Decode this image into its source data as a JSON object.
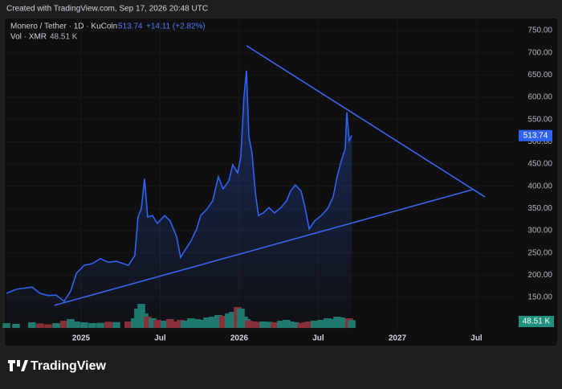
{
  "header": {
    "caption": "Created with TradingView.com, Sep 17, 2026 20:48 UTC",
    "brand": "TradingView"
  },
  "chart_data": {
    "type": "area",
    "symbol": "Monero / Tether · 1D · KuCoin",
    "change_label": "+14.11 (+2.82%)",
    "x": [
      2024.528,
      2024.589,
      2024.69,
      2024.741,
      2024.792,
      2024.843,
      2024.893,
      2024.934,
      2024.97,
      2025.02,
      2025.071,
      2025.122,
      2025.173,
      2025.223,
      2025.299,
      2025.34,
      2025.36,
      2025.381,
      2025.401,
      2025.421,
      2025.452,
      2025.482,
      2025.528,
      2025.563,
      2025.604,
      2025.629,
      2025.655,
      2025.695,
      2025.731,
      2025.756,
      2025.797,
      2025.832,
      2025.868,
      2025.898,
      2025.934,
      2025.959,
      2025.99,
      2026.01,
      2026.03,
      2026.046,
      2026.061,
      2026.081,
      2026.102,
      2026.122,
      2026.152,
      2026.188,
      2026.223,
      2026.264,
      2026.299,
      2026.325,
      2026.355,
      2026.391,
      2026.416,
      2026.442,
      2026.477,
      2026.518,
      2026.558,
      2026.594,
      2026.619,
      2026.645,
      2026.67,
      2026.68,
      2026.695,
      2026.711
    ],
    "series": [
      {
        "name": "Monero / Tether",
        "color": "#2f63f3",
        "values": [
          159,
          168,
          173,
          159,
          154,
          155,
          141,
          164,
          204,
          222,
          226,
          237,
          229,
          231,
          222,
          244,
          331,
          349,
          417,
          331,
          334,
          316,
          334,
          322,
          286,
          240,
          255,
          277,
          304,
          334,
          349,
          367,
          421,
          394,
          412,
          448,
          430,
          466,
          602,
          660,
          511,
          475,
          385,
          334,
          340,
          352,
          340,
          352,
          367,
          389,
          403,
          389,
          352,
          304,
          322,
          334,
          349,
          376,
          421,
          457,
          484,
          566,
          502,
          513.74
        ]
      }
    ],
    "volume": {
      "name": "Vol · XMR",
      "color_up": "#1f7a6a",
      "color_down": "#8a2e33",
      "label_color": "#1f8f7f",
      "ylim": [
        0,
        200
      ],
      "last_label": "48.51 K",
      "values": [
        30,
        25,
        35,
        28,
        22,
        30,
        45,
        55,
        40,
        35,
        30,
        32,
        38,
        36,
        40,
        60,
        120,
        150,
        90,
        70,
        60,
        50,
        45,
        55,
        40,
        50,
        45,
        60,
        55,
        50,
        65,
        70,
        80,
        75,
        90,
        100,
        130,
        120,
        70,
        55,
        45,
        40,
        38,
        35,
        40,
        38,
        35,
        45,
        50,
        40,
        35,
        30,
        35,
        40,
        45,
        50,
        60,
        55,
        70,
        65,
        55,
        55,
        60,
        48.51
      ]
    },
    "trendlines": [
      {
        "color": "#3a66f0",
        "x": [
          2026.046,
          2027.553
        ],
        "y": [
          716,
          376
        ]
      },
      {
        "color": "#3a66f0",
        "x": [
          2024.832,
          2027.472
        ],
        "y": [
          132,
          392
        ]
      }
    ],
    "xlim": [
      2024.518,
      2027.736
    ],
    "ylim": [
      74,
      779
    ],
    "xticks": [
      {
        "value": 2025,
        "label": "2025"
      },
      {
        "value": 2025.5,
        "label": "Jul"
      },
      {
        "value": 2026,
        "label": "2026"
      },
      {
        "value": 2026.5,
        "label": "Jul"
      },
      {
        "value": 2027,
        "label": "2027"
      },
      {
        "value": 2027.5,
        "label": "Jul"
      }
    ],
    "yticks": [
      {
        "value": 150,
        "label": "150.00"
      },
      {
        "value": 200,
        "label": "200.00"
      },
      {
        "value": 250,
        "label": "250.00"
      },
      {
        "value": 300,
        "label": "300.00"
      },
      {
        "value": 350,
        "label": "350.00"
      },
      {
        "value": 400,
        "label": "400.00"
      },
      {
        "value": 450,
        "label": "450.00"
      },
      {
        "value": 500,
        "label": "500.00"
      },
      {
        "value": 550,
        "label": "550.00"
      },
      {
        "value": 600,
        "label": "600.00"
      },
      {
        "value": 650,
        "label": "650.00"
      },
      {
        "value": 700,
        "label": "700.00"
      },
      {
        "value": 750,
        "label": "750.00"
      }
    ],
    "grid": true
  }
}
